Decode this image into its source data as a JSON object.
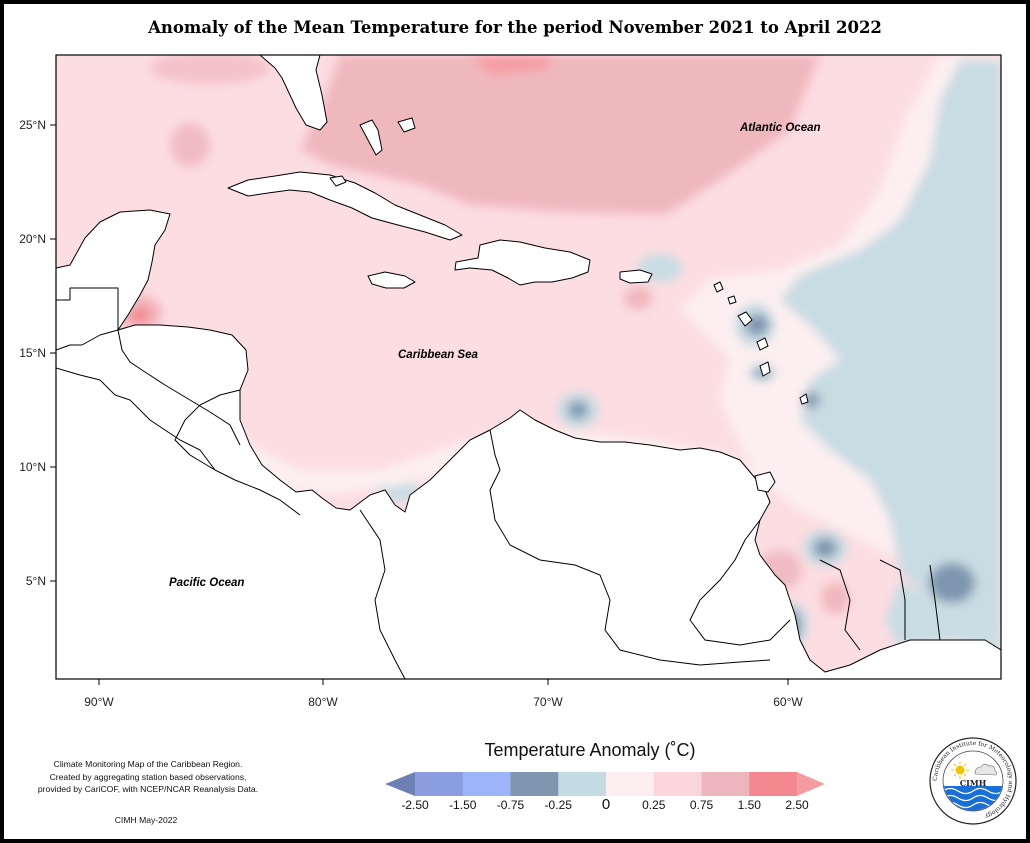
{
  "title": "Anomaly of the Mean Temperature for the period November 2021 to April 2022",
  "map": {
    "latitude_labels": [
      "25°N",
      "20°N",
      "15°N",
      "10°N",
      "5°N"
    ],
    "longitude_labels": [
      "90°W",
      "80°W",
      "70°W",
      "60°W"
    ],
    "labels": {
      "atlantic": "Atlantic Ocean",
      "caribbean": "Caribbean Sea",
      "pacific": "Pacific Ocean"
    }
  },
  "legend": {
    "title": "Temperature Anomaly (˚C)",
    "tick_labels": [
      "-2.50",
      "-1.50",
      "-0.75",
      "-0.25",
      "0",
      "0.25",
      "0.75",
      "1.50",
      "2.50"
    ],
    "colors": [
      "#6e7fb4",
      "#8a9ddf",
      "#9db5f8",
      "#7f96b0",
      "#c5dbe3",
      "#fdeef0",
      "#fad5db",
      "#edb6bc",
      "#f4888f",
      "#f59ca3"
    ]
  },
  "credits": {
    "line1": "Climate Monitoring Map of the Caribbean Region.",
    "line2": "Created by aggregating station based observations,",
    "line3": "provided by CariCOF, with NCEP/NCAR Reanalysis Data.",
    "date": "CIMH May-2022"
  },
  "logo": {
    "text": "CIMH",
    "ring_text": "Caribbean Institute for Meteorology and Hydrology"
  }
}
